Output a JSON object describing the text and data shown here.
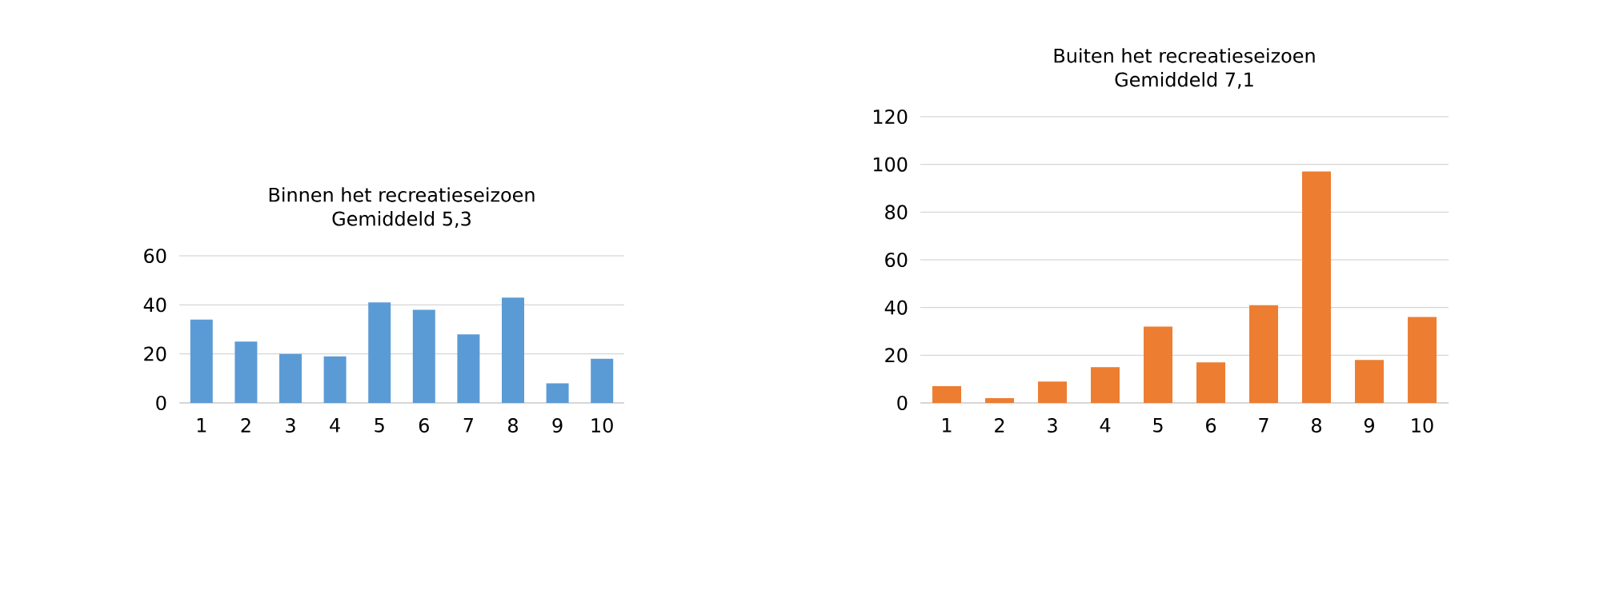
{
  "chart_data": [
    {
      "type": "bar",
      "title": "Binnen het recreatieseizoen",
      "subtitle": "Gemiddeld 5,3",
      "categories": [
        "1",
        "2",
        "3",
        "4",
        "5",
        "6",
        "7",
        "8",
        "9",
        "10"
      ],
      "values": [
        34,
        25,
        20,
        19,
        41,
        38,
        28,
        43,
        8,
        18
      ],
      "color": "#5b9bd5",
      "ylim": [
        0,
        60
      ],
      "yticks": [
        0,
        20,
        40,
        60
      ],
      "grid": "y"
    },
    {
      "type": "bar",
      "title": "Buiten het recreatieseizoen",
      "subtitle": "Gemiddeld 7,1",
      "categories": [
        "1",
        "2",
        "3",
        "4",
        "5",
        "6",
        "7",
        "8",
        "9",
        "10"
      ],
      "values": [
        7,
        2,
        9,
        15,
        32,
        17,
        41,
        97,
        18,
        36
      ],
      "color": "#ed7d31",
      "ylim": [
        0,
        120
      ],
      "yticks": [
        0,
        20,
        40,
        60,
        80,
        100,
        120
      ],
      "grid": "y"
    }
  ]
}
